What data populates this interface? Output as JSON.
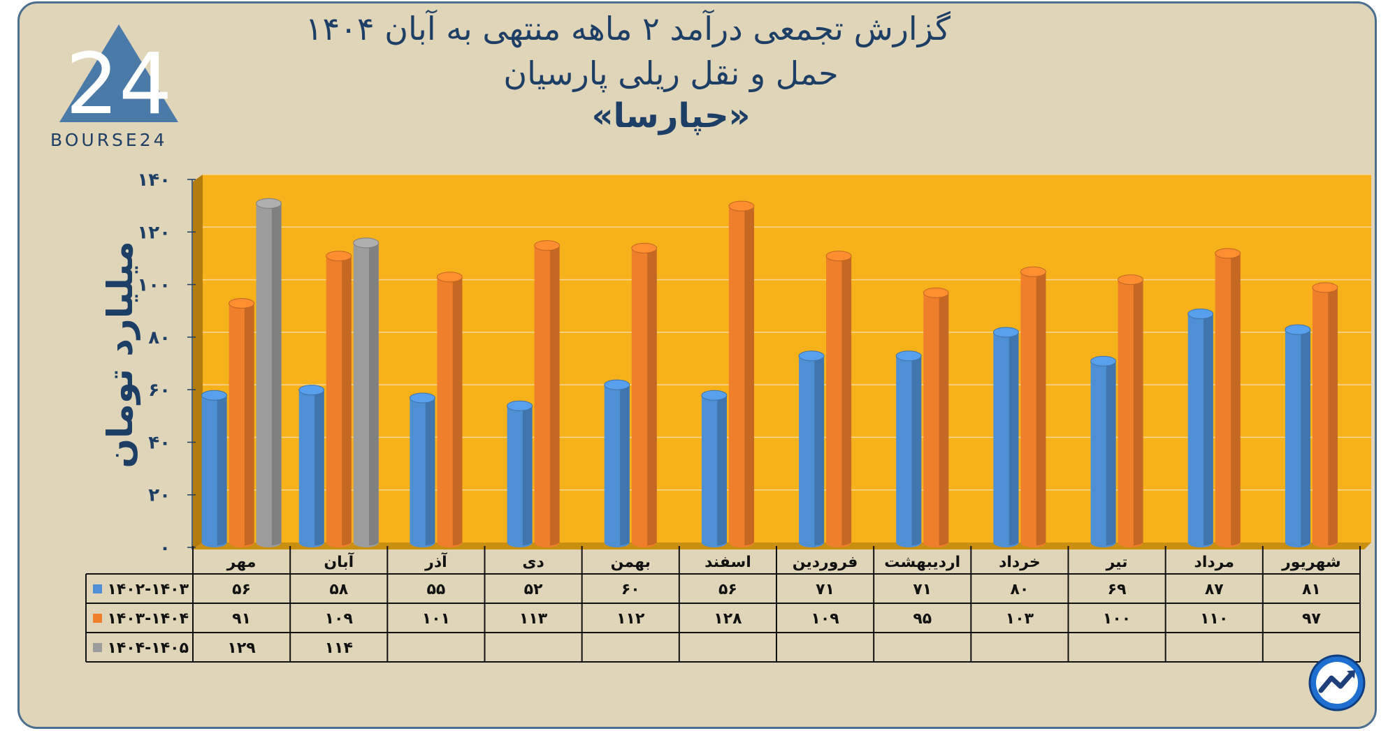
{
  "title_lines": [
    "گزارش تجمعی درآمد ۲ ماهه منتهی به آبان ۱۴۰۴",
    "حمل و نقل ریلی پارسیان",
    "«حپارسا»"
  ],
  "logo": {
    "text": "BOURSE24",
    "numeral": "24"
  },
  "colors": {
    "series1": "#4f8fd4",
    "series2": "#f07f2c",
    "series3": "#9c9c9c",
    "plot_background": "#f7b11a",
    "card_background": "#e0d5b9",
    "text": "#1d3f66"
  },
  "chart_data": {
    "type": "bar",
    "ylabel": "میلیارد تومان",
    "ylim": [
      0,
      140
    ],
    "yticks": [
      0,
      20,
      40,
      60,
      80,
      100,
      120,
      140
    ],
    "ytick_labels": [
      "۰",
      "۲۰",
      "۴۰",
      "۶۰",
      "۸۰",
      "۱۰۰",
      "۱۲۰",
      "۱۴۰"
    ],
    "grid": true,
    "categories": [
      "مهر",
      "آبان",
      "آذر",
      "دی",
      "بهمن",
      "اسفند",
      "فروردین",
      "اردیبهشت",
      "خرداد",
      "تیر",
      "مرداد",
      "شهریور"
    ],
    "series": [
      {
        "name": "۱۴۰۲-۱۴۰۳",
        "values": [
          56,
          58,
          55,
          52,
          60,
          56,
          71,
          71,
          80,
          69,
          87,
          81
        ],
        "labels": [
          "۵۶",
          "۵۸",
          "۵۵",
          "۵۲",
          "۶۰",
          "۵۶",
          "۷۱",
          "۷۱",
          "۸۰",
          "۶۹",
          "۸۷",
          "۸۱"
        ]
      },
      {
        "name": "۱۴۰۳-۱۴۰۴",
        "values": [
          91,
          109,
          101,
          113,
          112,
          128,
          109,
          95,
          103,
          100,
          110,
          97
        ],
        "labels": [
          "۹۱",
          "۱۰۹",
          "۱۰۱",
          "۱۱۳",
          "۱۱۲",
          "۱۲۸",
          "۱۰۹",
          "۹۵",
          "۱۰۳",
          "۱۰۰",
          "۱۱۰",
          "۹۷"
        ]
      },
      {
        "name": "۱۴۰۴-۱۴۰۵",
        "values": [
          129,
          114,
          null,
          null,
          null,
          null,
          null,
          null,
          null,
          null,
          null,
          null
        ],
        "labels": [
          "۱۲۹",
          "۱۱۴",
          "",
          "",
          "",
          "",
          "",
          "",
          "",
          "",
          "",
          ""
        ]
      }
    ],
    "data_table": true
  }
}
